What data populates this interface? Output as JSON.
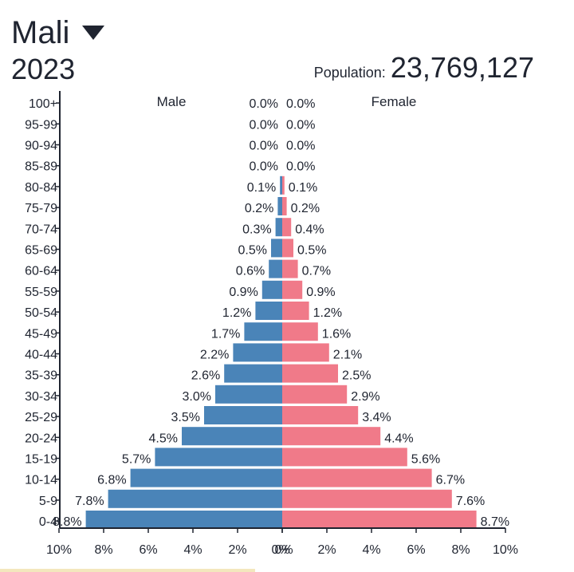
{
  "header": {
    "country": "Mali",
    "year": "2023",
    "population_label": "Population:",
    "population_value": "23,769,127"
  },
  "chart_data": {
    "type": "bar",
    "orientation": "horizontal-pyramid",
    "categories": [
      "100+",
      "95-99",
      "90-94",
      "85-89",
      "80-84",
      "75-79",
      "70-74",
      "65-69",
      "60-64",
      "55-59",
      "50-54",
      "45-49",
      "40-44",
      "35-39",
      "30-34",
      "25-29",
      "20-24",
      "15-19",
      "10-14",
      "5-9",
      "0-4"
    ],
    "series": [
      {
        "name": "Male",
        "values": [
          0.0,
          0.0,
          0.0,
          0.0,
          0.1,
          0.2,
          0.3,
          0.5,
          0.6,
          0.9,
          1.2,
          1.7,
          2.2,
          2.6,
          3.0,
          3.5,
          4.5,
          5.7,
          6.8,
          7.8,
          8.8
        ],
        "labels": [
          "0.0%",
          "0.0%",
          "0.0%",
          "0.0%",
          "0.1%",
          "0.2%",
          "0.3%",
          "0.5%",
          "0.6%",
          "0.9%",
          "1.2%",
          "1.7%",
          "2.2%",
          "2.6%",
          "3.0%",
          "3.5%",
          "4.5%",
          "5.7%",
          "6.8%",
          "7.8%",
          "8.8%"
        ],
        "color": "#4a84b8"
      },
      {
        "name": "Female",
        "values": [
          0.0,
          0.0,
          0.0,
          0.0,
          0.1,
          0.2,
          0.4,
          0.5,
          0.7,
          0.9,
          1.2,
          1.6,
          2.1,
          2.5,
          2.9,
          3.4,
          4.4,
          5.6,
          6.7,
          7.6,
          8.7
        ],
        "labels": [
          "0.0%",
          "0.0%",
          "0.0%",
          "0.0%",
          "0.1%",
          "0.2%",
          "0.4%",
          "0.5%",
          "0.7%",
          "0.9%",
          "1.2%",
          "1.6%",
          "2.1%",
          "2.5%",
          "2.9%",
          "3.4%",
          "4.4%",
          "5.6%",
          "6.7%",
          "7.6%",
          "8.7%"
        ],
        "color": "#f07a89"
      }
    ],
    "x_ticks_left": [
      "10%",
      "8%",
      "6%",
      "4%",
      "2%",
      "0%"
    ],
    "x_ticks_right": [
      "0%",
      "2%",
      "4%",
      "6%",
      "8%",
      "10%"
    ],
    "xlim": [
      -10,
      10
    ],
    "grid": false,
    "legend": "top"
  }
}
